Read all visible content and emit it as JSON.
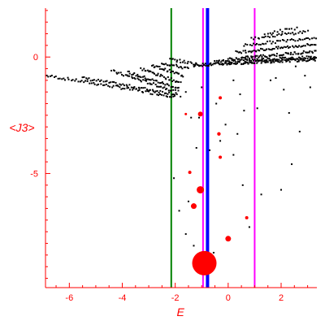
{
  "chart_data": {
    "type": "scatter",
    "title": "",
    "xlabel": "E",
    "ylabel": "<J3>",
    "xlim": [
      -6.9,
      3.35
    ],
    "ylim": [
      -9.9,
      2.1
    ],
    "grid": false,
    "x_ticks": [
      -6,
      -4,
      -2,
      0,
      2
    ],
    "y_ticks": [
      0,
      -5
    ],
    "colors": {
      "axis": "#ff0000",
      "tick_label": "#ff0000",
      "points": "#000000",
      "highlight": "#ff0000",
      "line_green": "#008000",
      "line_magenta": "#ff00ff",
      "line_blue": "#0000ff"
    },
    "vertical_lines": [
      {
        "x": -2.15,
        "color": "green"
      },
      {
        "x": -0.95,
        "color": "magenta"
      },
      {
        "x": -0.78,
        "color": "blue"
      },
      {
        "x": 1.0,
        "color": "magenta"
      }
    ],
    "series": [
      {
        "kind": "black-points",
        "bands": [
          {
            "x_start": -6.85,
            "y_start": -0.8,
            "x_end": -2.0,
            "y_end": -1.7,
            "count": 70
          },
          {
            "x_start": -5.5,
            "y_start": -0.9,
            "x_end": -1.95,
            "y_end": -1.6,
            "count": 55
          },
          {
            "x_start": -4.4,
            "y_start": -0.6,
            "x_end": -1.9,
            "y_end": -1.5,
            "count": 45
          },
          {
            "x_start": -3.8,
            "y_start": -0.65,
            "x_end": -1.85,
            "y_end": -1.35,
            "count": 38
          },
          {
            "x_start": -3.3,
            "y_start": -0.5,
            "x_end": -1.8,
            "y_end": -1.1,
            "count": 32
          },
          {
            "x_start": -2.9,
            "y_start": -0.35,
            "x_end": -1.7,
            "y_end": -0.8,
            "count": 26
          },
          {
            "x_start": -2.5,
            "y_start": -0.25,
            "x_end": -1.5,
            "y_end": -0.5,
            "count": 20
          },
          {
            "x_start": -2.2,
            "y_start": -0.1,
            "x_end": -1.2,
            "y_end": -0.3,
            "count": 18
          },
          {
            "x_start": -1.3,
            "y_start": -0.35,
            "x_end": 3.3,
            "y_end": -0.1,
            "count": 130
          },
          {
            "x_start": -0.5,
            "y_start": -0.2,
            "x_end": 3.3,
            "y_end": 0.0,
            "count": 90
          },
          {
            "x_start": 0.0,
            "y_start": -0.1,
            "x_end": 3.3,
            "y_end": 0.25,
            "count": 70
          },
          {
            "x_start": 0.3,
            "y_start": 0.2,
            "x_end": 3.3,
            "y_end": 0.55,
            "count": 55
          },
          {
            "x_start": 0.6,
            "y_start": 0.5,
            "x_end": 3.3,
            "y_end": 0.85,
            "count": 40
          },
          {
            "x_start": 0.9,
            "y_start": 0.8,
            "x_end": 3.0,
            "y_end": 1.1,
            "count": 30
          },
          {
            "x_start": 1.4,
            "y_start": 1.0,
            "x_end": 2.6,
            "y_end": 1.25,
            "count": 14
          }
        ],
        "points": [
          [
            -1.8,
            -1.7
          ],
          [
            -1.6,
            -1.5
          ],
          [
            -1.4,
            -2.6
          ],
          [
            -1.1,
            -2.6
          ],
          [
            -1.0,
            -1.3
          ],
          [
            -0.45,
            -2.0
          ],
          [
            0.2,
            -1.0
          ],
          [
            0.45,
            -1.6
          ],
          [
            0.6,
            -2.3
          ],
          [
            0.35,
            -3.3
          ],
          [
            -0.3,
            -3.6
          ],
          [
            -0.7,
            -4.0
          ],
          [
            0.2,
            -4.2
          ],
          [
            0.55,
            -5.5
          ],
          [
            1.1,
            -2.2
          ],
          [
            1.6,
            -1.0
          ],
          [
            2.1,
            -1.4
          ],
          [
            2.3,
            -2.4
          ],
          [
            2.7,
            -3.2
          ],
          [
            2.4,
            -4.6
          ],
          [
            2.0,
            -5.7
          ],
          [
            1.25,
            -5.9
          ],
          [
            3.1,
            -1.3
          ],
          [
            1.8,
            -0.9
          ],
          [
            -2.05,
            -5.2
          ],
          [
            -1.85,
            -6.6
          ],
          [
            -1.6,
            -7.6
          ],
          [
            -1.3,
            -8.1
          ],
          [
            -1.5,
            -6.2
          ],
          [
            0.8,
            -7.3
          ],
          [
            -0.55,
            -8.4
          ],
          [
            -1.2,
            -3.9
          ],
          [
            2.55,
            -0.4
          ],
          [
            2.9,
            -0.8
          ],
          [
            -0.1,
            -2.9
          ]
        ]
      },
      {
        "kind": "red-markers",
        "points": [
          {
            "x": -0.9,
            "y": -8.85,
            "size": 15
          },
          {
            "x": -1.05,
            "y": -5.7,
            "size": 4.5
          },
          {
            "x": -1.3,
            "y": -6.4,
            "size": 3.5
          },
          {
            "x": 0.0,
            "y": -7.8,
            "size": 3.5
          },
          {
            "x": -1.05,
            "y": -2.45,
            "size": 3
          },
          {
            "x": -1.45,
            "y": -4.95,
            "size": 2
          },
          {
            "x": -0.35,
            "y": -3.3,
            "size": 2.2
          },
          {
            "x": -0.3,
            "y": -4.3,
            "size": 2
          },
          {
            "x": 0.7,
            "y": -6.9,
            "size": 2
          },
          {
            "x": -0.3,
            "y": -1.75,
            "size": 2
          },
          {
            "x": -1.6,
            "y": -2.45,
            "size": 1.5
          }
        ]
      }
    ]
  }
}
